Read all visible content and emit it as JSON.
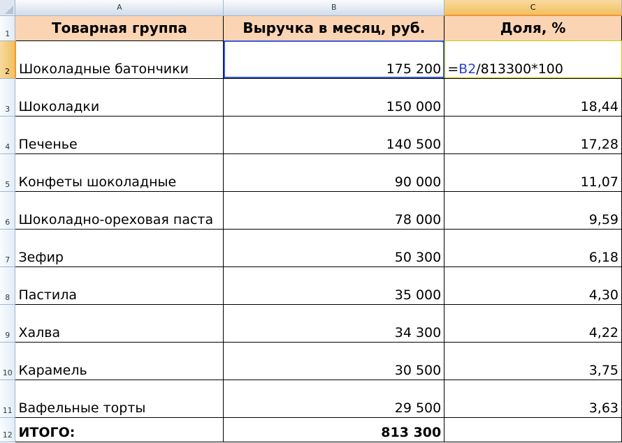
{
  "columns": [
    "A",
    "B",
    "C"
  ],
  "header": {
    "row_number": "1",
    "group": "Товарная группа",
    "revenue": "Выручка в месяц, руб.",
    "share": "Доля, %"
  },
  "formula_row": {
    "row_number": "2",
    "group": "Шоколадные батончики",
    "revenue": "175 200",
    "formula_prefix": "=",
    "formula_ref": "B2",
    "formula_rest": "/813300*100"
  },
  "rows": [
    {
      "row_number": "3",
      "group": "Шоколадки",
      "revenue": "150 000",
      "share": "18,44"
    },
    {
      "row_number": "4",
      "group": "Печенье",
      "revenue": "140 500",
      "share": "17,28"
    },
    {
      "row_number": "5",
      "group": "Конфеты шоколадные",
      "revenue": "90 000",
      "share": "11,07"
    },
    {
      "row_number": "6",
      "group": "Шоколадно-ореховая паста",
      "revenue": "78 000",
      "share": "9,59"
    },
    {
      "row_number": "7",
      "group": "Зефир",
      "revenue": "50 300",
      "share": "6,18"
    },
    {
      "row_number": "8",
      "group": "Пастила",
      "revenue": "35 000",
      "share": "4,30"
    },
    {
      "row_number": "9",
      "group": "Халва",
      "revenue": "34 300",
      "share": "4,22"
    },
    {
      "row_number": "10",
      "group": "Карамель",
      "revenue": "30 500",
      "share": "3,75"
    },
    {
      "row_number": "11",
      "group": "Вафельные торты",
      "revenue": "29 500",
      "share": "3,63"
    }
  ],
  "total": {
    "row_number": "12",
    "label": "ИТОГО:",
    "revenue": "813 300",
    "share": ""
  },
  "colors": {
    "header_fill": "#fbd4b4",
    "selection": "#3b5bdb",
    "cell_reference": "#2b3fd6",
    "active_header": "#f1c15f"
  }
}
